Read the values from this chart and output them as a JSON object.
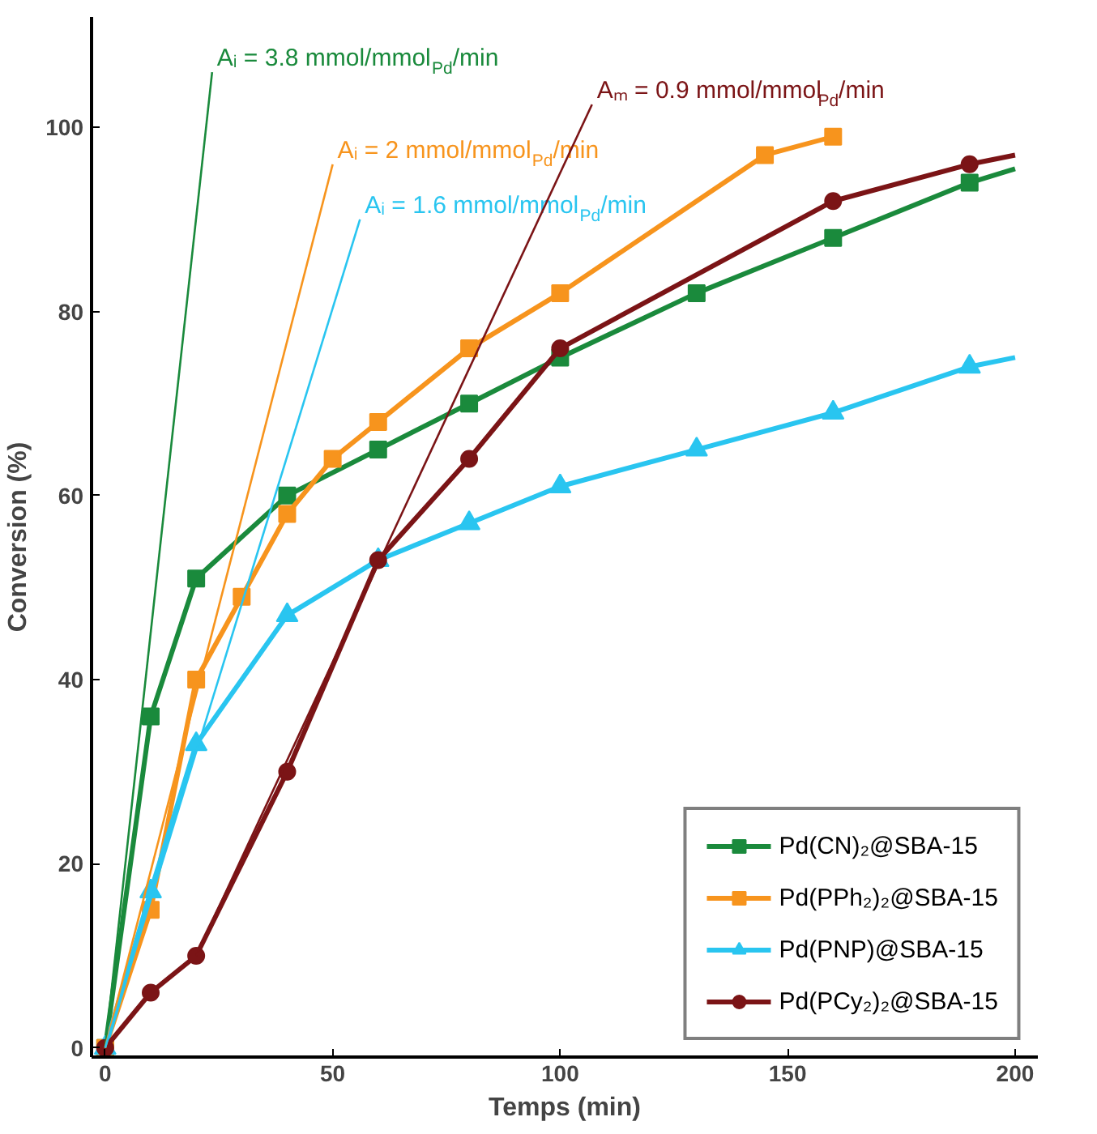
{
  "chart_data": {
    "type": "line",
    "xlabel": "Temps (min)",
    "ylabel": "Conversion (%)",
    "xlim": [
      -3,
      205
    ],
    "ylim": [
      -1,
      112
    ],
    "xticks": [
      0,
      50,
      100,
      150,
      200
    ],
    "yticks": [
      0,
      20,
      40,
      60,
      80,
      100
    ],
    "grid": false,
    "legend": "bottom right",
    "line_style": "solid",
    "series": [
      {
        "name": "Pd(CN)₂@SBA-15",
        "color": "#1a8a3c",
        "marker": "square",
        "x": [
          0,
          10,
          20,
          40,
          60,
          80,
          100,
          130,
          160,
          190
        ],
        "values": [
          0,
          36,
          51,
          60,
          65,
          70,
          75,
          82,
          88,
          94
        ]
      },
      {
        "name": "Pd(PPh₂)₂@SBA-15",
        "color": "#f7941d",
        "marker": "square",
        "x": [
          0,
          10,
          20,
          30,
          40,
          50,
          60,
          80,
          100,
          145,
          160
        ],
        "values": [
          0,
          15,
          40,
          49,
          58,
          64,
          68,
          76,
          82,
          97,
          99
        ]
      },
      {
        "name": "Pd(PNP)@SBA-15",
        "color": "#29c5f0",
        "marker": "triangle",
        "x": [
          0,
          10,
          20,
          40,
          60,
          80,
          100,
          130,
          160,
          190
        ],
        "values": [
          0,
          17,
          33,
          47,
          53,
          57,
          61,
          65,
          69,
          74
        ]
      },
      {
        "name": "Pd(PCy₂)₂@SBA-15",
        "color": "#7b1416",
        "marker": "circle",
        "x": [
          0,
          10,
          20,
          40,
          60,
          80,
          100,
          160,
          190
        ],
        "values": [
          0,
          6,
          10,
          30,
          53,
          64,
          76,
          92,
          96
        ]
      },
      {
        "color": "#1a8a3c",
        "marker": "none",
        "x": [
          190,
          200
        ],
        "values": [
          94,
          95.5
        ]
      },
      {
        "color": "#29c5f0",
        "marker": "none",
        "x": [
          190,
          200
        ],
        "values": [
          74,
          75
        ]
      },
      {
        "color": "#7b1416",
        "marker": "none",
        "x": [
          190,
          200
        ],
        "values": [
          96,
          97
        ]
      },
      {
        "name": "Aᵢ = 3.8 mmol/mmol$_{Pd}$/min",
        "color": "#1a8a3c",
        "marker": "none",
        "x": [
          0,
          23.5
        ],
        "values": [
          0,
          106
        ]
      },
      {
        "name": "Aᵢ = 2 mmol/mmol$_{Pd}$/min",
        "color": "#f7941d",
        "marker": "none",
        "x": [
          0,
          50
        ],
        "values": [
          0,
          96
        ]
      },
      {
        "name": "Aᵢ = 1.6 mmol/mmol$_{Pd}$/min",
        "color": "#29c5f0",
        "marker": "none",
        "x": [
          0,
          56
        ],
        "values": [
          0,
          90
        ]
      },
      {
        "name": "Aₘ = 0.9 mmol/mmol$_{Pd}$/min",
        "color": "#7b1416",
        "marker": "none",
        "x": [
          20,
          107
        ],
        "values": [
          10,
          102.5
        ]
      }
    ]
  }
}
